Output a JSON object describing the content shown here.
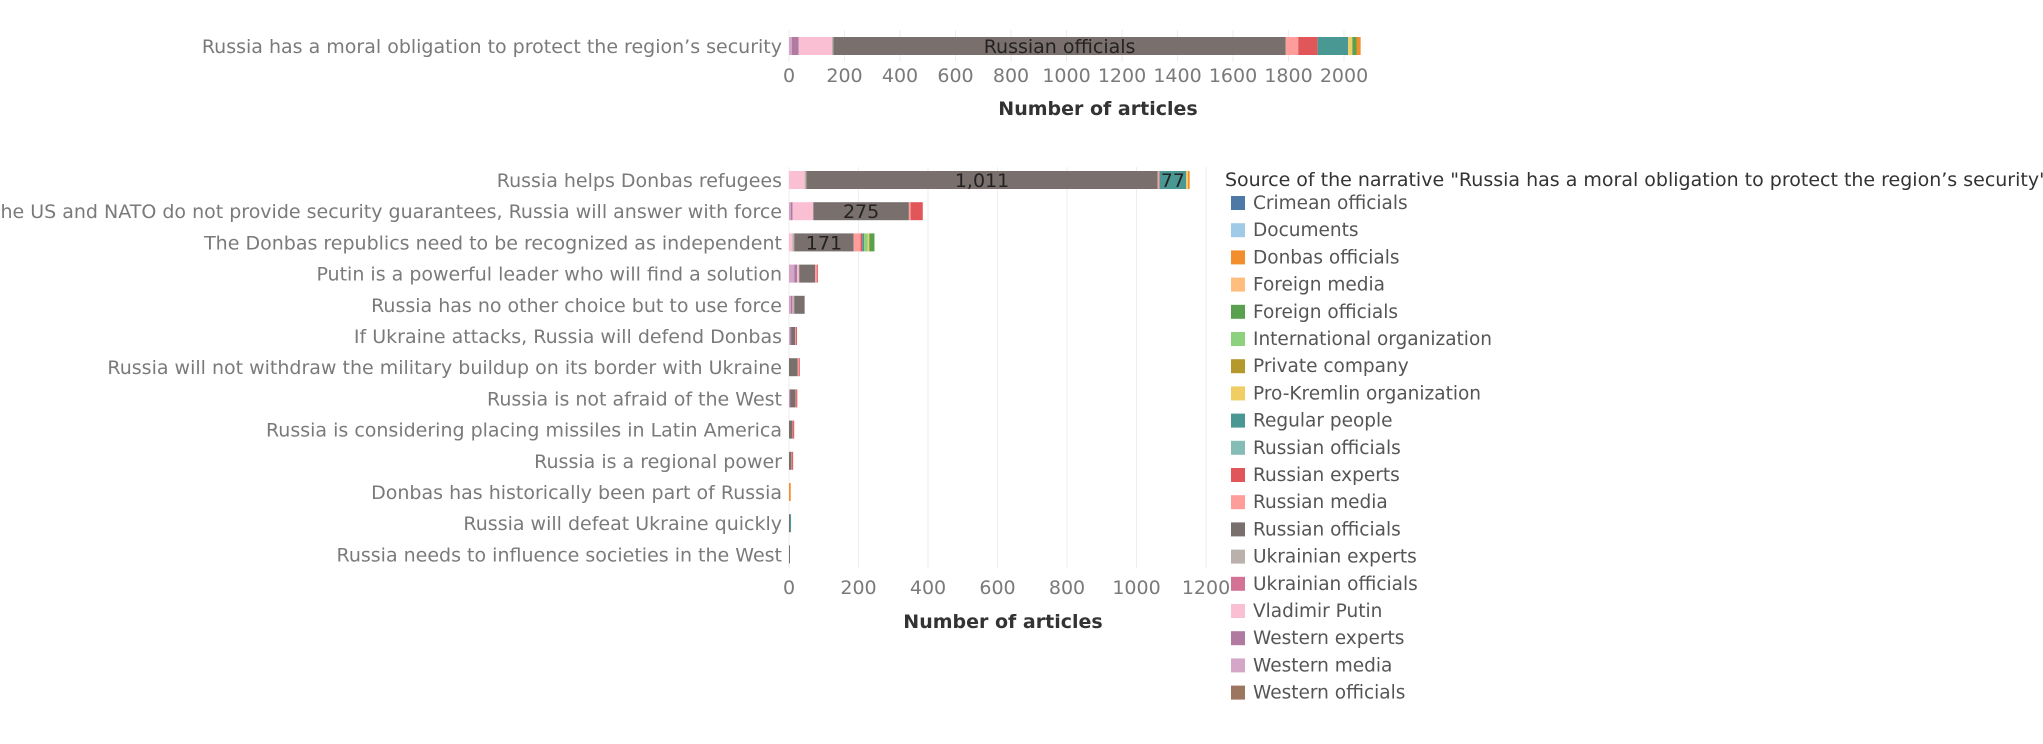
{
  "colors": {
    "Crimean officials": "#4e79a7",
    "Documents": "#a0cbe8",
    "Donbas officials": "#f28e2b",
    "Foreign media": "#ffbe7d",
    "Foreign officials": "#59a14f",
    "International organization": "#8cd17d",
    "Private company": "#b6992d",
    "Pro-Kremlin organization": "#f1ce63",
    "Regular people": "#499894",
    "Russian officials (teal)": "#86bcb6",
    "Russian experts": "#e15759",
    "Russian media": "#ff9d9a",
    "Russian officials": "#79706e",
    "Ukrainian experts": "#bab0ac",
    "Ukrainian officials": "#d37295",
    "Vladimir Putin": "#fabfd2",
    "Western experts": "#b07aa1",
    "Western media": "#d4a6c8",
    "Western officials": "#9d7660"
  },
  "chart_data": [
    {
      "type": "bar",
      "orientation": "horizontal",
      "stacked": true,
      "categories": [
        "Russia has a moral obligation to protect the region’s security"
      ],
      "series": [
        {
          "name": "Western media",
          "values": [
            10
          ]
        },
        {
          "name": "Western experts",
          "values": [
            25
          ]
        },
        {
          "name": "Vladimir Putin",
          "values": [
            120
          ]
        },
        {
          "name": "Ukrainian experts",
          "values": [
            5
          ]
        },
        {
          "name": "Russian officials",
          "values": [
            1630
          ]
        },
        {
          "name": "Russian media",
          "values": [
            45
          ]
        },
        {
          "name": "Russian experts",
          "values": [
            70
          ]
        },
        {
          "name": "Regular people",
          "values": [
            110
          ]
        },
        {
          "name": "Pro-Kremlin organization",
          "values": [
            15
          ]
        },
        {
          "name": "Foreign officials",
          "values": [
            15
          ]
        },
        {
          "name": "Donbas officials",
          "values": [
            15
          ]
        }
      ],
      "data_labels": [
        {
          "series": "Russian officials",
          "text": "Russian officials"
        }
      ],
      "x_ticks": [
        "0",
        "200",
        "400",
        "600",
        "800",
        "1000",
        "1200",
        "1400",
        "1600",
        "1800",
        "2000"
      ],
      "xlim": [
        0,
        2100
      ],
      "xlabel": "Number of articles",
      "grid": true
    },
    {
      "type": "bar",
      "orientation": "horizontal",
      "stacked": true,
      "categories": [
        "Russia helps Donbas refugees",
        "If the US and NATO do not provide security guarantees, Russia will answer with force",
        "The Donbas republics need to be recognized as independent",
        "Putin is a powerful leader who will find a solution",
        "Russia has no other choice but to use force",
        "If Ukraine attacks, Russia will defend Donbas",
        "Russia will not withdraw the military buildup on its border with Ukraine",
        "Russia is not afraid of the West",
        "Russia is considering placing missiles in Latin America",
        "Russia is a regional power",
        "Donbas has historically been part of Russia",
        "Russia will defeat Ukraine quickly",
        "Russia needs to influence societies in the West"
      ],
      "series": [
        {
          "name": "Western media",
          "values": [
            0,
            5,
            0,
            15,
            5,
            3,
            0,
            2,
            0,
            0,
            0,
            0,
            0
          ]
        },
        {
          "name": "Western experts",
          "values": [
            0,
            5,
            0,
            8,
            5,
            3,
            0,
            2,
            0,
            0,
            0,
            0,
            0
          ]
        },
        {
          "name": "Vladimir Putin",
          "values": [
            45,
            60,
            10,
            5,
            2,
            0,
            0,
            0,
            0,
            0,
            0,
            0,
            0
          ]
        },
        {
          "name": "Ukrainian experts",
          "values": [
            5,
            0,
            5,
            2,
            3,
            0,
            0,
            0,
            0,
            0,
            0,
            0,
            0
          ]
        },
        {
          "name": "Russian officials",
          "values": [
            1011,
            275,
            171,
            45,
            30,
            12,
            25,
            15,
            10,
            7,
            0,
            3,
            2
          ]
        },
        {
          "name": "Russian media",
          "values": [
            5,
            5,
            20,
            5,
            0,
            2,
            3,
            2,
            2,
            2,
            0,
            0,
            0
          ]
        },
        {
          "name": "Russian experts",
          "values": [
            0,
            35,
            5,
            3,
            0,
            2,
            3,
            2,
            3,
            3,
            0,
            0,
            0
          ]
        },
        {
          "name": "Regular people",
          "values": [
            77,
            0,
            5,
            0,
            0,
            0,
            0,
            0,
            0,
            0,
            0,
            2,
            0
          ]
        },
        {
          "name": "International organization",
          "values": [
            0,
            0,
            10,
            0,
            0,
            0,
            0,
            0,
            0,
            0,
            0,
            0,
            0
          ]
        },
        {
          "name": "Pro-Kremlin organization",
          "values": [
            5,
            0,
            5,
            0,
            0,
            0,
            0,
            0,
            0,
            0,
            0,
            0,
            0
          ]
        },
        {
          "name": "Foreign officials",
          "values": [
            0,
            0,
            15,
            0,
            0,
            0,
            0,
            0,
            0,
            0,
            0,
            0,
            0
          ]
        },
        {
          "name": "Donbas officials",
          "values": [
            5,
            0,
            0,
            0,
            0,
            0,
            0,
            0,
            0,
            0,
            5,
            0,
            0
          ]
        }
      ],
      "data_labels": [
        {
          "category": 0,
          "series": "Russian officials",
          "text": "1,011"
        },
        {
          "category": 0,
          "series": "Regular people",
          "text": "77"
        },
        {
          "category": 1,
          "series": "Russian officials",
          "text": "275"
        },
        {
          "category": 2,
          "series": "Russian officials",
          "text": "171"
        }
      ],
      "x_ticks": [
        "0",
        "200",
        "400",
        "600",
        "800",
        "1000",
        "1200"
      ],
      "xlim": [
        0,
        1200
      ],
      "xlabel": "Number of articles",
      "grid": true
    }
  ],
  "legend": {
    "title": "Source of the narrative \"Russia has a moral obligation to protect the region’s security\"",
    "placement": "right",
    "items": [
      {
        "label": "Crimean officials",
        "color": "#4e79a7"
      },
      {
        "label": "Documents",
        "color": "#a0cbe8"
      },
      {
        "label": "Donbas officials",
        "color": "#f28e2b"
      },
      {
        "label": "Foreign media",
        "color": "#ffbe7d"
      },
      {
        "label": "Foreign officials",
        "color": "#59a14f"
      },
      {
        "label": "International organization",
        "color": "#8cd17d"
      },
      {
        "label": "Private company",
        "color": "#b6992d"
      },
      {
        "label": "Pro-Kremlin organization",
        "color": "#f1ce63"
      },
      {
        "label": "Regular people",
        "color": "#499894"
      },
      {
        "label": "Russian officials",
        "color": "#86bcb6"
      },
      {
        "label": "Russian experts",
        "color": "#e15759"
      },
      {
        "label": "Russian media",
        "color": "#ff9d9a"
      },
      {
        "label": "Russian officials",
        "color": "#79706e"
      },
      {
        "label": "Ukrainian experts",
        "color": "#bab0ac"
      },
      {
        "label": "Ukrainian officials",
        "color": "#d37295"
      },
      {
        "label": "Vladimir Putin",
        "color": "#fabfd2"
      },
      {
        "label": "Western experts",
        "color": "#b07aa1"
      },
      {
        "label": "Western media",
        "color": "#d4a6c8"
      },
      {
        "label": "Western officials",
        "color": "#9d7660"
      }
    ]
  }
}
